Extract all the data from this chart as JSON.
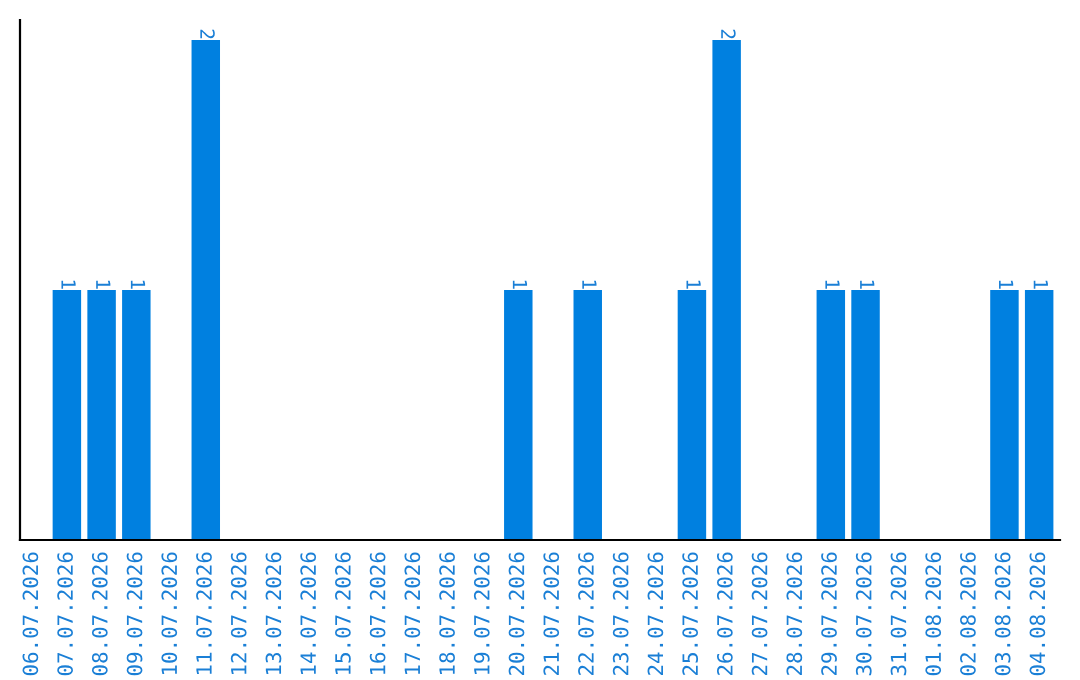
{
  "chart_data": {
    "type": "bar",
    "categories": [
      "06.07.2026",
      "07.07.2026",
      "08.07.2026",
      "09.07.2026",
      "10.07.2026",
      "11.07.2026",
      "12.07.2026",
      "13.07.2026",
      "14.07.2026",
      "15.07.2026",
      "16.07.2026",
      "17.07.2026",
      "18.07.2026",
      "19.07.2026",
      "20.07.2026",
      "21.07.2026",
      "22.07.2026",
      "23.07.2026",
      "24.07.2026",
      "25.07.2026",
      "26.07.2026",
      "27.07.2026",
      "28.07.2026",
      "29.07.2026",
      "30.07.2026",
      "31.07.2026",
      "01.08.2026",
      "02.08.2026",
      "03.08.2026",
      "04.08.2026"
    ],
    "values": [
      0,
      1,
      1,
      1,
      0,
      2,
      0,
      0,
      0,
      0,
      0,
      0,
      0,
      0,
      1,
      0,
      1,
      0,
      0,
      1,
      2,
      0,
      0,
      1,
      1,
      0,
      0,
      0,
      1,
      1
    ],
    "value_labels": [
      null,
      "1",
      "1",
      "1",
      null,
      "2",
      null,
      null,
      null,
      null,
      null,
      null,
      null,
      null,
      "1",
      null,
      "1",
      null,
      null,
      "1",
      "2",
      null,
      null,
      "1",
      "1",
      null,
      null,
      null,
      "1",
      "1"
    ],
    "color": "#0080e0",
    "ylim": [
      0,
      2.08
    ],
    "tick_labels": "x",
    "grid": false,
    "legend": false
  }
}
